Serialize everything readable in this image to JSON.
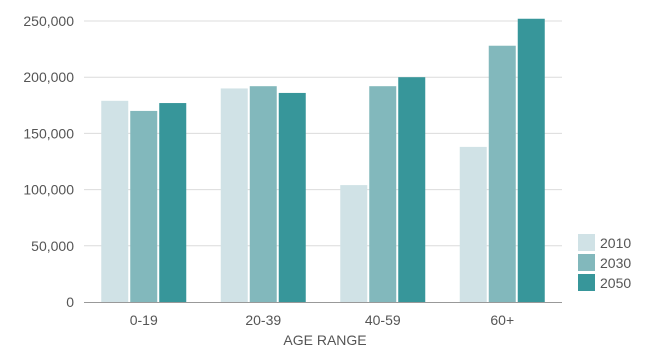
{
  "chart_data": {
    "type": "bar",
    "title": "",
    "xlabel": "AGE RANGE",
    "ylabel": "",
    "categories": [
      "0-19",
      "20-39",
      "40-59",
      "60+"
    ],
    "series": [
      {
        "name": "2010",
        "color": "#d0e2e6",
        "values": [
          179000,
          190000,
          104000,
          138000
        ]
      },
      {
        "name": "2030",
        "color": "#82b8bc",
        "values": [
          170000,
          192000,
          192000,
          228000
        ]
      },
      {
        "name": "2050",
        "color": "#37969a",
        "values": [
          177000,
          186000,
          200000,
          252000
        ]
      }
    ],
    "ylim": [
      0,
      250000
    ],
    "yticks": [
      0,
      50000,
      100000,
      150000,
      200000,
      250000
    ],
    "ytick_labels": [
      "0",
      "50,000",
      "100,000",
      "150,000",
      "200,000",
      "250,000"
    ],
    "grid": true,
    "legend_position": "right-bottom"
  }
}
